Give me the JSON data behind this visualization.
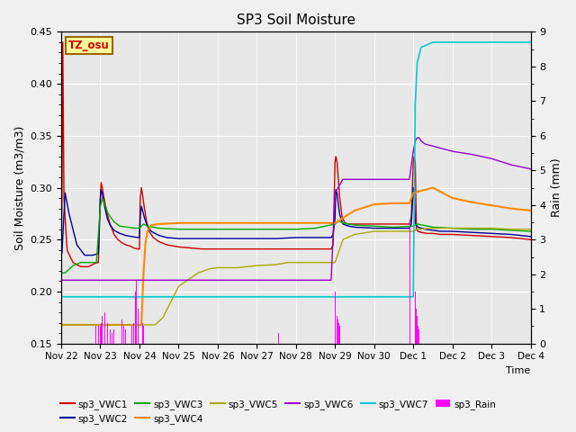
{
  "title": "SP3 Soil Moisture",
  "xlabel": "Time",
  "ylabel_left": "Soil Moisture (m3/m3)",
  "ylabel_right": "Rain (mm)",
  "ylim_left": [
    0.15,
    0.45
  ],
  "ylim_right": [
    0.0,
    9.0
  ],
  "background_color": "#f0f0f0",
  "plot_bg_color": "#e8e8e8",
  "annotation_text": "TZ_osu",
  "annotation_bg": "#ffff99",
  "annotation_border": "#996600",
  "annotation_text_color": "#cc0000",
  "xtick_labels": [
    "Nov 22",
    "Nov 23",
    "Nov 24",
    "Nov 25",
    "Nov 26",
    "Nov 27",
    "Nov 28",
    "Nov 29",
    "Nov 30",
    "Dec 1",
    "Dec 2",
    "Dec 3",
    "Dec 4"
  ],
  "series_order": [
    "sp3_VWC1",
    "sp3_VWC2",
    "sp3_VWC3",
    "sp3_VWC4",
    "sp3_VWC5",
    "sp3_VWC6",
    "sp3_VWC7"
  ],
  "series": {
    "sp3_VWC1": {
      "color": "#cc0000",
      "lw": 1.0,
      "data": {
        "x": [
          0.0,
          0.02,
          0.04,
          0.07,
          0.15,
          0.3,
          0.5,
          0.7,
          0.85,
          0.95,
          1.0,
          1.02,
          1.05,
          1.08,
          1.12,
          1.18,
          1.25,
          1.35,
          1.45,
          1.55,
          1.65,
          1.75,
          1.85,
          1.95,
          2.0,
          2.02,
          2.05,
          2.08,
          2.12,
          2.18,
          2.25,
          2.35,
          2.5,
          2.7,
          3.0,
          3.3,
          3.6,
          4.0,
          4.5,
          5.0,
          5.5,
          6.0,
          6.5,
          6.9,
          6.95,
          7.0,
          7.02,
          7.05,
          7.08,
          7.12,
          7.18,
          7.25,
          7.35,
          7.5,
          7.7,
          8.0,
          8.5,
          8.9,
          8.95,
          9.0,
          9.02,
          9.05,
          9.08,
          9.12,
          9.2,
          9.35,
          9.5,
          9.7,
          10.0,
          10.5,
          11.0,
          11.5,
          12.0
        ],
        "y": [
          0.218,
          0.305,
          0.44,
          0.29,
          0.24,
          0.228,
          0.224,
          0.224,
          0.227,
          0.228,
          0.29,
          0.305,
          0.3,
          0.293,
          0.285,
          0.274,
          0.265,
          0.255,
          0.25,
          0.247,
          0.245,
          0.244,
          0.242,
          0.241,
          0.241,
          0.29,
          0.3,
          0.293,
          0.282,
          0.268,
          0.258,
          0.252,
          0.248,
          0.245,
          0.243,
          0.242,
          0.241,
          0.241,
          0.241,
          0.241,
          0.241,
          0.241,
          0.241,
          0.241,
          0.245,
          0.325,
          0.33,
          0.325,
          0.31,
          0.29,
          0.272,
          0.266,
          0.265,
          0.265,
          0.265,
          0.265,
          0.265,
          0.265,
          0.272,
          0.325,
          0.33,
          0.325,
          0.26,
          0.258,
          0.257,
          0.256,
          0.256,
          0.255,
          0.255,
          0.254,
          0.253,
          0.252,
          0.25
        ]
      }
    },
    "sp3_VWC2": {
      "color": "#000099",
      "lw": 1.0,
      "data": {
        "x": [
          0.0,
          0.02,
          0.05,
          0.1,
          0.2,
          0.4,
          0.6,
          0.8,
          0.9,
          0.95,
          1.0,
          1.02,
          1.05,
          1.08,
          1.12,
          1.18,
          1.25,
          1.35,
          1.5,
          1.65,
          1.8,
          1.95,
          2.0,
          2.02,
          2.05,
          2.08,
          2.12,
          2.18,
          2.3,
          2.5,
          2.7,
          3.0,
          3.3,
          4.0,
          4.5,
          5.0,
          5.5,
          6.0,
          6.5,
          6.9,
          6.95,
          7.0,
          7.02,
          7.05,
          7.08,
          7.12,
          7.2,
          7.35,
          7.5,
          8.0,
          8.5,
          8.9,
          8.95,
          9.0,
          9.02,
          9.05,
          9.12,
          9.3,
          9.5,
          9.7,
          10.0,
          10.5,
          11.0,
          11.5,
          12.0
        ],
        "y": [
          0.235,
          0.238,
          0.26,
          0.295,
          0.275,
          0.245,
          0.235,
          0.235,
          0.236,
          0.237,
          0.29,
          0.298,
          0.295,
          0.288,
          0.28,
          0.27,
          0.264,
          0.259,
          0.256,
          0.254,
          0.253,
          0.252,
          0.252,
          0.272,
          0.282,
          0.278,
          0.272,
          0.265,
          0.258,
          0.254,
          0.252,
          0.251,
          0.251,
          0.251,
          0.251,
          0.251,
          0.251,
          0.252,
          0.252,
          0.252,
          0.255,
          0.27,
          0.298,
          0.295,
          0.285,
          0.274,
          0.265,
          0.263,
          0.262,
          0.261,
          0.261,
          0.261,
          0.265,
          0.3,
          0.298,
          0.265,
          0.262,
          0.26,
          0.259,
          0.258,
          0.258,
          0.257,
          0.256,
          0.255,
          0.253
        ]
      }
    },
    "sp3_VWC3": {
      "color": "#00aa00",
      "lw": 1.0,
      "data": {
        "x": [
          0.0,
          0.1,
          0.3,
          0.5,
          0.7,
          0.9,
          1.0,
          1.05,
          1.1,
          1.2,
          1.35,
          1.5,
          1.7,
          1.9,
          2.0,
          2.1,
          2.2,
          2.5,
          3.0,
          3.5,
          4.0,
          4.5,
          5.0,
          5.5,
          6.0,
          6.5,
          7.0,
          7.1,
          7.2,
          7.5,
          8.0,
          8.5,
          9.0,
          9.1,
          9.5,
          10.0,
          10.5,
          11.0,
          11.5,
          12.0
        ],
        "y": [
          0.218,
          0.218,
          0.225,
          0.228,
          0.228,
          0.228,
          0.282,
          0.29,
          0.285,
          0.275,
          0.267,
          0.263,
          0.262,
          0.261,
          0.261,
          0.265,
          0.263,
          0.261,
          0.26,
          0.26,
          0.26,
          0.26,
          0.26,
          0.26,
          0.26,
          0.261,
          0.265,
          0.268,
          0.266,
          0.264,
          0.263,
          0.262,
          0.263,
          0.265,
          0.262,
          0.261,
          0.26,
          0.26,
          0.259,
          0.258
        ]
      }
    },
    "sp3_VWC4": {
      "color": "#ff8800",
      "lw": 1.5,
      "data": {
        "x": [
          0.0,
          0.5,
          1.0,
          1.5,
          2.0,
          2.05,
          2.1,
          2.15,
          2.2,
          2.3,
          2.5,
          3.0,
          3.5,
          4.0,
          4.5,
          5.0,
          5.5,
          6.0,
          6.5,
          7.0,
          7.5,
          8.0,
          8.5,
          8.9,
          9.0,
          9.5,
          10.0,
          10.5,
          11.0,
          11.5,
          12.0
        ],
        "y": [
          0.168,
          0.168,
          0.168,
          0.168,
          0.168,
          0.168,
          0.215,
          0.245,
          0.258,
          0.264,
          0.265,
          0.266,
          0.266,
          0.266,
          0.266,
          0.266,
          0.266,
          0.266,
          0.266,
          0.266,
          0.278,
          0.284,
          0.285,
          0.285,
          0.295,
          0.3,
          0.29,
          0.286,
          0.283,
          0.28,
          0.278
        ]
      }
    },
    "sp3_VWC5": {
      "color": "#aaaa00",
      "lw": 1.0,
      "data": {
        "x": [
          0.0,
          0.5,
          1.0,
          1.5,
          1.8,
          2.0,
          2.2,
          2.4,
          2.6,
          2.8,
          3.0,
          3.5,
          3.8,
          4.0,
          4.5,
          5.0,
          5.5,
          5.8,
          6.0,
          6.3,
          6.5,
          6.9,
          7.0,
          7.2,
          7.5,
          8.0,
          8.5,
          9.0,
          9.1,
          9.5,
          10.0,
          10.5,
          11.0,
          11.5,
          12.0
        ],
        "y": [
          0.168,
          0.168,
          0.168,
          0.168,
          0.168,
          0.168,
          0.168,
          0.168,
          0.175,
          0.19,
          0.205,
          0.218,
          0.222,
          0.223,
          0.223,
          0.225,
          0.226,
          0.228,
          0.228,
          0.228,
          0.228,
          0.228,
          0.228,
          0.25,
          0.255,
          0.258,
          0.258,
          0.258,
          0.26,
          0.261,
          0.261,
          0.261,
          0.261,
          0.26,
          0.26
        ]
      }
    },
    "sp3_VWC6": {
      "color": "#9900cc",
      "lw": 1.0,
      "data": {
        "x": [
          0.0,
          0.5,
          1.0,
          1.5,
          2.0,
          2.5,
          3.0,
          3.5,
          4.0,
          4.5,
          5.0,
          5.5,
          6.0,
          6.5,
          6.9,
          7.0,
          7.2,
          7.5,
          8.0,
          8.5,
          8.9,
          9.0,
          9.05,
          9.1,
          9.15,
          9.2,
          9.3,
          9.5,
          10.0,
          10.5,
          11.0,
          11.5,
          12.0
        ],
        "y": [
          0.211,
          0.211,
          0.211,
          0.211,
          0.211,
          0.211,
          0.211,
          0.211,
          0.211,
          0.211,
          0.211,
          0.211,
          0.211,
          0.211,
          0.211,
          0.295,
          0.308,
          0.308,
          0.308,
          0.308,
          0.308,
          0.335,
          0.345,
          0.348,
          0.348,
          0.345,
          0.342,
          0.34,
          0.335,
          0.332,
          0.328,
          0.322,
          0.318
        ]
      }
    },
    "sp3_VWC7": {
      "color": "#00cccc",
      "lw": 1.2,
      "data": {
        "x": [
          0.0,
          0.5,
          1.0,
          1.5,
          2.0,
          2.5,
          3.0,
          3.5,
          4.0,
          4.5,
          5.0,
          5.5,
          6.0,
          6.5,
          7.0,
          7.5,
          8.0,
          8.5,
          8.9,
          9.0,
          9.05,
          9.1,
          9.2,
          9.5,
          10.0,
          10.5,
          11.0,
          11.5,
          12.0
        ],
        "y": [
          0.195,
          0.195,
          0.195,
          0.195,
          0.195,
          0.195,
          0.195,
          0.195,
          0.195,
          0.195,
          0.195,
          0.195,
          0.195,
          0.195,
          0.195,
          0.195,
          0.195,
          0.195,
          0.195,
          0.195,
          0.38,
          0.42,
          0.435,
          0.44,
          0.44,
          0.44,
          0.44,
          0.44,
          0.44
        ]
      }
    }
  },
  "rain_color": "#ff00ff",
  "rain_x": [
    0.04,
    0.85,
    0.88,
    0.9,
    0.92,
    0.95,
    0.97,
    1.0,
    1.02,
    1.05,
    1.08,
    1.1,
    1.12,
    1.15,
    1.18,
    1.2,
    1.25,
    1.3,
    1.35,
    1.4,
    1.45,
    1.5,
    1.55,
    1.6,
    1.65,
    1.7,
    1.75,
    1.8,
    1.85,
    1.9,
    1.92,
    1.95,
    1.97,
    2.0,
    2.02,
    2.05,
    2.08,
    2.1,
    5.55,
    6.88,
    6.9,
    6.92,
    6.95,
    6.97,
    7.0,
    7.02,
    7.05,
    7.08,
    7.1,
    7.12,
    7.15,
    7.18,
    8.88,
    8.9,
    8.92,
    8.95,
    8.97,
    9.0,
    9.02,
    9.05,
    9.08,
    9.1,
    9.12,
    9.15
  ],
  "rain_h": [
    0.3,
    0.3,
    0.5,
    0.8,
    0.6,
    0.5,
    0.4,
    0.5,
    0.6,
    0.8,
    0.6,
    0.7,
    0.9,
    0.7,
    0.6,
    0.5,
    0.4,
    0.3,
    0.4,
    0.6,
    0.5,
    0.6,
    0.7,
    0.5,
    0.4,
    0.5,
    0.6,
    0.5,
    0.6,
    1.5,
    1.8,
    1.5,
    1.0,
    1.5,
    1.2,
    0.8,
    0.6,
    0.5,
    0.3,
    0.4,
    0.6,
    0.9,
    1.0,
    0.8,
    1.5,
    0.9,
    0.8,
    0.7,
    0.6,
    0.5,
    0.4,
    0.3,
    1.5,
    2.5,
    3.5,
    4.0,
    3.0,
    2.5,
    2.0,
    1.5,
    1.0,
    0.8,
    0.5,
    0.4
  ]
}
